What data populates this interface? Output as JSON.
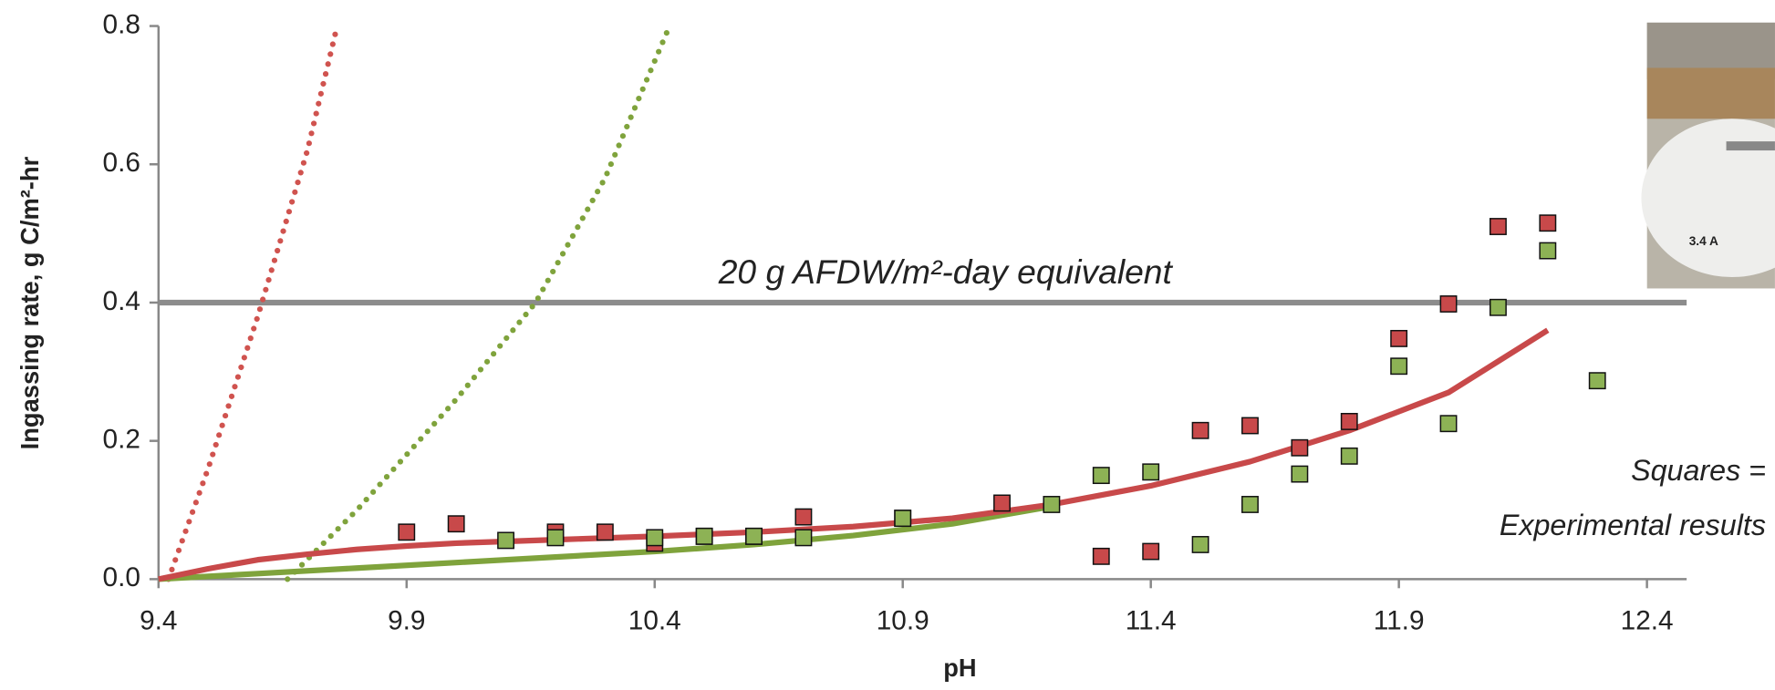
{
  "chart_data": {
    "type": "scatter",
    "xlabel": "pH",
    "ylabel": "Ingassing rate, g C/m²-hr",
    "xlim": [
      9.4,
      12.48
    ],
    "ylim": [
      0,
      0.8
    ],
    "xticks": [
      9.4,
      9.9,
      10.4,
      10.9,
      11.4,
      11.9,
      12.4
    ],
    "yticks": [
      {
        "value": 0,
        "label": "0.0"
      },
      0.2,
      0.4,
      0.6,
      0.8
    ],
    "reference_line": {
      "value": 0.4,
      "label": "20 g AFDW/m²-day equivalent",
      "color": "#8c8c8c"
    },
    "annotation": [
      "Squares =",
      "Experimental results"
    ],
    "photo_label": "3.4 A",
    "series": [
      {
        "style": "dotted",
        "color": "#d0534f",
        "x": [
          9.42,
          9.5,
          9.6,
          9.7,
          9.76
        ],
        "values": [
          0,
          0.16,
          0.38,
          0.62,
          0.8
        ]
      },
      {
        "style": "dotted",
        "color": "#7fa33c",
        "x": [
          9.66,
          9.8,
          10.0,
          10.16,
          10.3,
          10.43
        ],
        "values": [
          0,
          0.1,
          0.26,
          0.4,
          0.58,
          0.8
        ]
      },
      {
        "style": "solid",
        "color": "#7fa33c",
        "x": [
          9.4,
          9.6,
          9.8,
          10.0,
          10.2,
          10.4,
          10.6,
          10.8,
          11.0,
          11.2
        ],
        "values": [
          0,
          0.008,
          0.016,
          0.024,
          0.032,
          0.04,
          0.05,
          0.063,
          0.08,
          0.105
        ]
      },
      {
        "style": "solid",
        "color": "#c8494a",
        "x": [
          9.4,
          9.5,
          9.6,
          9.7,
          9.8,
          9.9,
          10.0,
          10.2,
          10.4,
          10.6,
          10.8,
          11.0,
          11.2,
          11.4,
          11.6,
          11.8,
          12.0,
          12.2
        ],
        "values": [
          0,
          0.015,
          0.028,
          0.036,
          0.043,
          0.048,
          0.052,
          0.057,
          0.062,
          0.068,
          0.076,
          0.088,
          0.108,
          0.135,
          0.17,
          0.215,
          0.27,
          0.36
        ]
      },
      {
        "style": "markers",
        "color": "#c8494a",
        "x": [
          9.9,
          10.0,
          10.2,
          10.3,
          10.4,
          10.5,
          10.6,
          10.7,
          10.9,
          11.1,
          11.3,
          11.4,
          11.5,
          11.6,
          11.7,
          11.8,
          11.9,
          12.0,
          12.1,
          12.2
        ],
        "values": [
          0.068,
          0.08,
          0.068,
          0.068,
          0.052,
          0.062,
          0.062,
          0.09,
          0.088,
          0.11,
          0.033,
          0.04,
          0.215,
          0.222,
          0.19,
          0.228,
          0.348,
          0.398,
          0.51,
          0.515
        ]
      },
      {
        "style": "markers",
        "color": "#8db255",
        "x": [
          10.1,
          10.2,
          10.4,
          10.5,
          10.6,
          10.7,
          10.9,
          11.2,
          11.3,
          11.4,
          11.5,
          11.6,
          11.7,
          11.8,
          11.9,
          12.0,
          12.1,
          12.2,
          12.3
        ],
        "values": [
          0.056,
          0.06,
          0.06,
          0.062,
          0.062,
          0.06,
          0.088,
          0.108,
          0.15,
          0.155,
          0.05,
          0.108,
          0.152,
          0.178,
          0.308,
          0.225,
          0.393,
          0.475,
          0.287
        ]
      }
    ]
  }
}
